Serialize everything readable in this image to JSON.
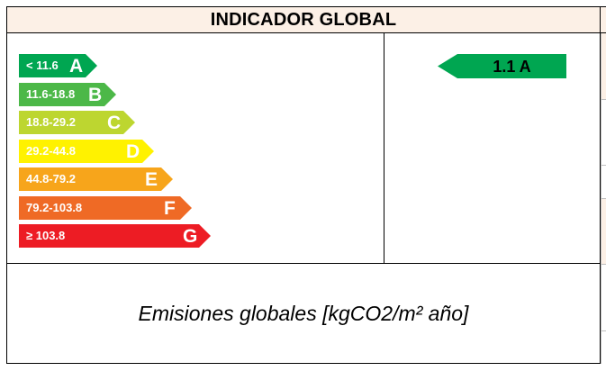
{
  "header": {
    "title": "INDICADOR GLOBAL"
  },
  "scale": [
    {
      "range": "< 11.6",
      "letter": "A",
      "color": "#00a651"
    },
    {
      "range": "11.6-18.8",
      "letter": "B",
      "color": "#4cb848"
    },
    {
      "range": "18.8-29.2",
      "letter": "C",
      "color": "#bdd630"
    },
    {
      "range": "29.2-44.8",
      "letter": "D",
      "color": "#fff200"
    },
    {
      "range": "44.8-79.2",
      "letter": "E",
      "color": "#f7a51b"
    },
    {
      "range": "79.2-103.8",
      "letter": "F",
      "color": "#ef6a25"
    },
    {
      "range": "≥ 103.8",
      "letter": "G",
      "color": "#ed1c24"
    }
  ],
  "result": {
    "label": "1.1 A",
    "color": "#00a651"
  },
  "caption": {
    "text": "Emisiones globales [kgCO2/m² año]"
  }
}
